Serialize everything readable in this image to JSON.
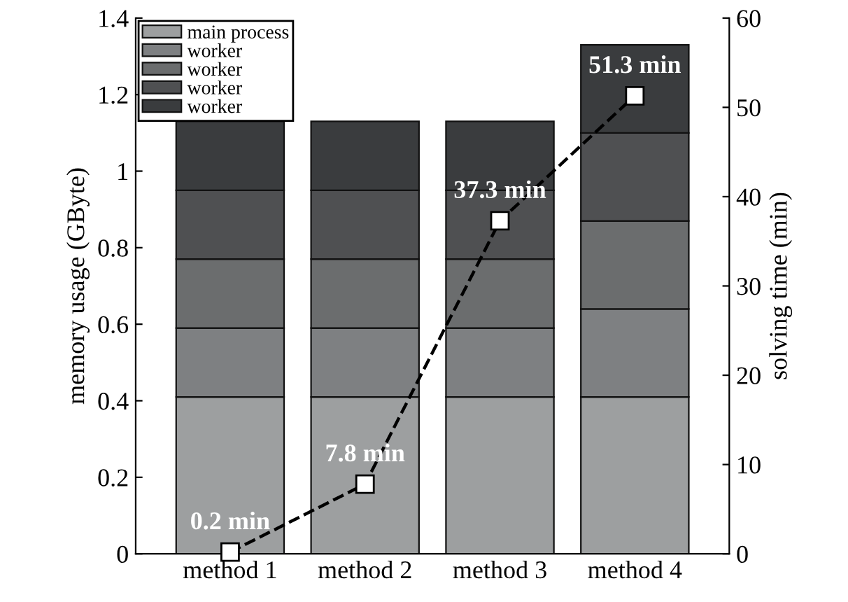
{
  "chart_data": {
    "type": "bar",
    "stacked": true,
    "categories": [
      "method 1",
      "method 2",
      "method 3",
      "method 4"
    ],
    "ylabel": "memory usage (GByte)",
    "y2label": "solving time (min)",
    "ylim": [
      0,
      1.4
    ],
    "yticks": [
      0,
      0.2,
      0.4,
      0.6,
      0.8,
      1,
      1.2,
      1.4
    ],
    "y2lim": [
      0,
      60
    ],
    "y2ticks": [
      0,
      10,
      20,
      30,
      40,
      50,
      60
    ],
    "grid": false,
    "legend": "top left",
    "series": [
      {
        "name": "main process",
        "color": "#9d9fa0",
        "values": [
          0.41,
          0.41,
          0.41,
          0.41
        ]
      },
      {
        "name": "worker",
        "color": "#7e8082",
        "values": [
          0.18,
          0.18,
          0.18,
          0.23
        ]
      },
      {
        "name": "worker",
        "color": "#6b6d6e",
        "values": [
          0.18,
          0.18,
          0.18,
          0.23
        ]
      },
      {
        "name": "worker",
        "color": "#4f5052",
        "values": [
          0.18,
          0.18,
          0.18,
          0.23
        ]
      },
      {
        "name": "worker",
        "color": "#3a3c3e",
        "values": [
          0.18,
          0.18,
          0.18,
          0.23
        ]
      },
      {
        "type": "line",
        "axis": "y2",
        "color": "#000000",
        "marker": "square",
        "line_style": "dashed",
        "values": [
          0.2,
          7.8,
          37.3,
          51.3
        ],
        "value_labels": [
          "0.2 min",
          "7.8 min",
          "37.3 min",
          "51.3 min"
        ]
      }
    ]
  }
}
